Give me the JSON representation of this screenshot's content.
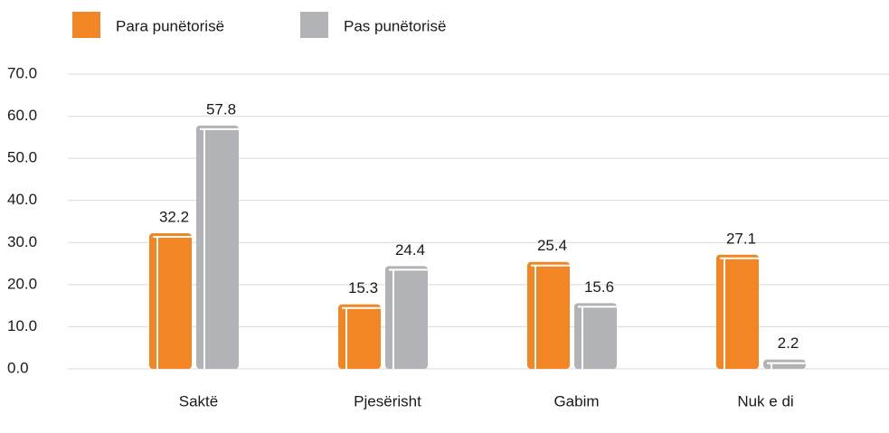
{
  "chart_data": {
    "type": "bar",
    "categories": [
      "Saktë",
      "Pjesërisht",
      "Gabim",
      "Nuk e di"
    ],
    "series": [
      {
        "name": "Para punëtorisë",
        "color": "#f28524",
        "values": [
          32.2,
          15.3,
          25.4,
          27.1
        ]
      },
      {
        "name": "Pas punëtorisë",
        "color": "#b1b3b6",
        "values": [
          57.8,
          24.4,
          15.6,
          2.2
        ]
      }
    ],
    "ylim": [
      0,
      70
    ],
    "yticks": [
      {
        "value": 0,
        "label": "0.0"
      },
      {
        "value": 10,
        "label": "10.0"
      },
      {
        "value": 20,
        "label": "20.0"
      },
      {
        "value": 30,
        "label": "30.0"
      },
      {
        "value": 40,
        "label": "40.0"
      },
      {
        "value": 50,
        "label": "50.0"
      },
      {
        "value": 60,
        "label": "60.0"
      },
      {
        "value": 70,
        "label": "70.0"
      }
    ],
    "grid": true,
    "legend": "top"
  }
}
